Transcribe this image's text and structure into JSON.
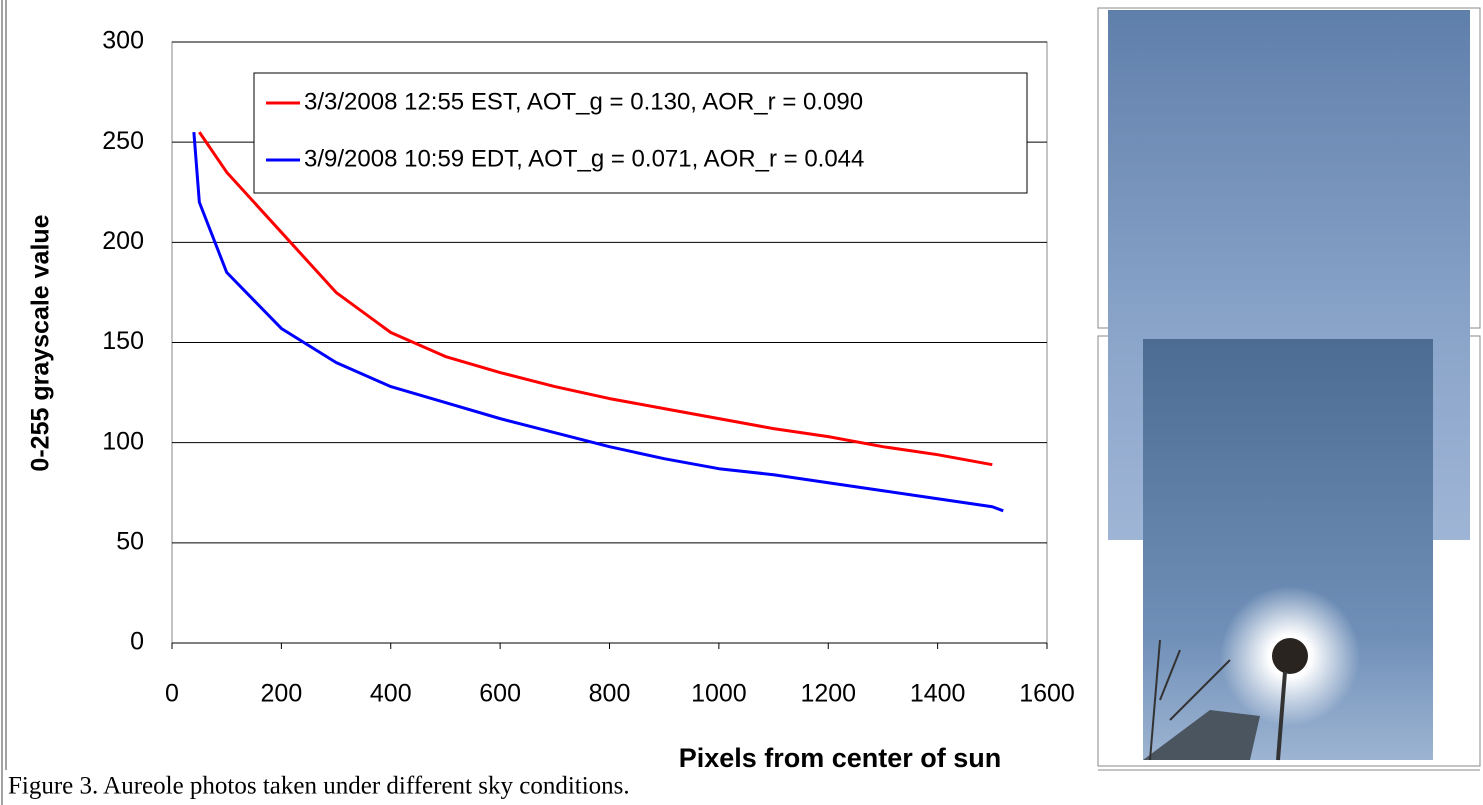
{
  "chart_data": {
    "type": "line",
    "x_label": "Pixels from center of sun",
    "y_label": "0-255 grayscale value",
    "x": [
      40,
      50,
      100,
      200,
      300,
      400,
      500,
      600,
      700,
      800,
      900,
      1000,
      1100,
      1200,
      1300,
      1400,
      1500,
      1520
    ],
    "series": [
      {
        "name": "3/3/2008 12:55 EST, AOT_g = 0.130, AOR_r = 0.090",
        "color": "#ff0000",
        "values": [
          null,
          255,
          235,
          205,
          175,
          155,
          143,
          135,
          128,
          122,
          117,
          112,
          107,
          103,
          98,
          94,
          89,
          null
        ]
      },
      {
        "name": "3/9/2008 10:59 EDT, AOT_g = 0.071, AOR_r = 0.044",
        "color": "#0000ff",
        "values": [
          255,
          220,
          185,
          157,
          140,
          128,
          120,
          112,
          105,
          98,
          92,
          87,
          84,
          80,
          76,
          72,
          68,
          66
        ]
      }
    ],
    "xlim": [
      0,
      1600
    ],
    "xticks": [
      0,
      200,
      400,
      600,
      800,
      1000,
      1200,
      1400,
      1600
    ],
    "ylim": [
      0,
      300
    ],
    "yticks": [
      0,
      50,
      100,
      150,
      200,
      250,
      300
    ],
    "grid": true,
    "legend": "top-right"
  },
  "caption": "Figure 3. Aureole photos taken under different sky conditions."
}
